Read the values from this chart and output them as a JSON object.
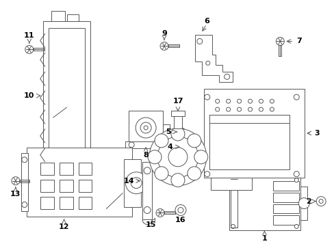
{
  "bg_color": "#ffffff",
  "line_color": "#555555",
  "label_color": "#000000",
  "figsize": [
    4.89,
    3.6
  ],
  "dpi": 100,
  "lw": 0.7
}
